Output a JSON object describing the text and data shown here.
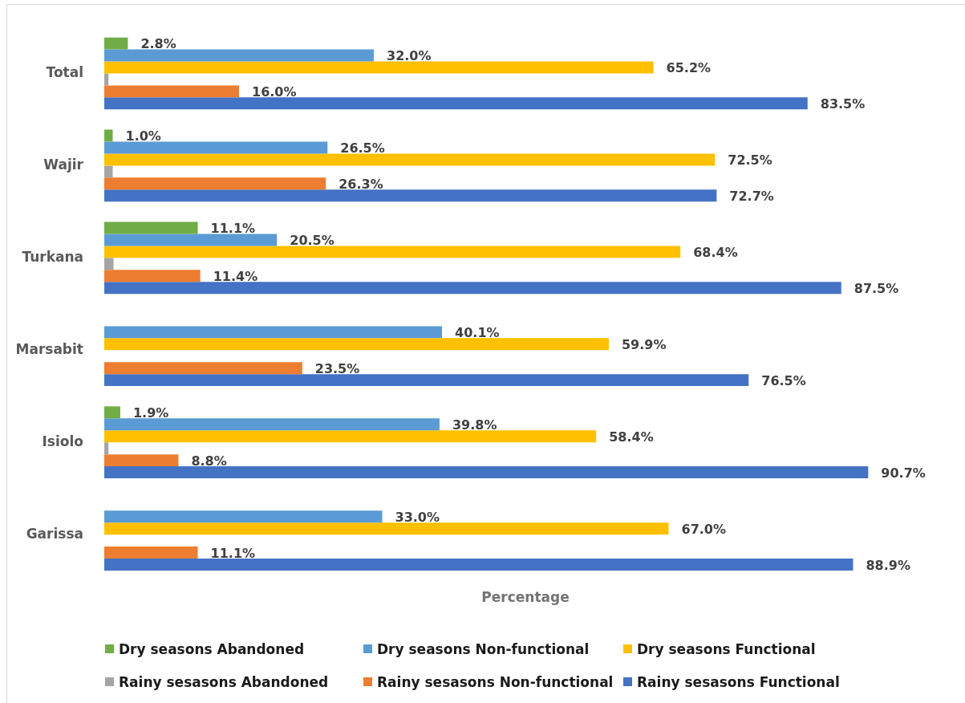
{
  "chart_data": {
    "type": "bar",
    "orientation": "horizontal",
    "xlabel": "Percentage",
    "categories": [
      "Total",
      "Wajir",
      "Turkana",
      "Marsabit",
      "Isiolo",
      "Garissa"
    ],
    "series": [
      {
        "name": "Dry seasons Abandoned",
        "color": "#70ad47",
        "values": [
          2.8,
          1.0,
          11.1,
          null,
          1.9,
          null
        ],
        "value_labels": [
          "2.8%",
          "1.0%",
          "11.1%",
          null,
          "1.9%",
          null
        ]
      },
      {
        "name": "Dry seasons Non-functional",
        "color": "#5b9bd5",
        "values": [
          32.0,
          26.5,
          20.5,
          40.1,
          39.8,
          33.0
        ],
        "value_labels": [
          "32.0%",
          "26.5%",
          "20.5%",
          "40.1%",
          "39.8%",
          "33.0%"
        ]
      },
      {
        "name": "Dry seasons Functional",
        "color": "#ffc000",
        "values": [
          65.2,
          72.5,
          68.4,
          59.9,
          58.4,
          67.0
        ],
        "value_labels": [
          "65.2%",
          "72.5%",
          "68.4%",
          "59.9%",
          "58.4%",
          "67.0%"
        ]
      },
      {
        "name": "Rainy sesasons Abandoned",
        "color": "#a5a5a5",
        "values": [
          0.5,
          1.0,
          1.1,
          null,
          0.5,
          null
        ]
      },
      {
        "name": "Rainy sesasons Non-functional",
        "color": "#ed7d31",
        "values": [
          16.0,
          26.3,
          11.4,
          23.5,
          8.8,
          11.1
        ],
        "value_labels": [
          "16.0%",
          "26.3%",
          "11.4%",
          "23.5%",
          "8.8%",
          "11.1%"
        ]
      },
      {
        "name": "Rainy sesasons Functional",
        "color": "#4472c4",
        "values": [
          83.5,
          72.7,
          87.5,
          76.5,
          90.7,
          88.9
        ],
        "value_labels": [
          "83.5%",
          "72.7%",
          "87.5%",
          "76.5%",
          "90.7%",
          "88.9%"
        ]
      }
    ],
    "tick_labels": "y",
    "legend": "bottom"
  }
}
